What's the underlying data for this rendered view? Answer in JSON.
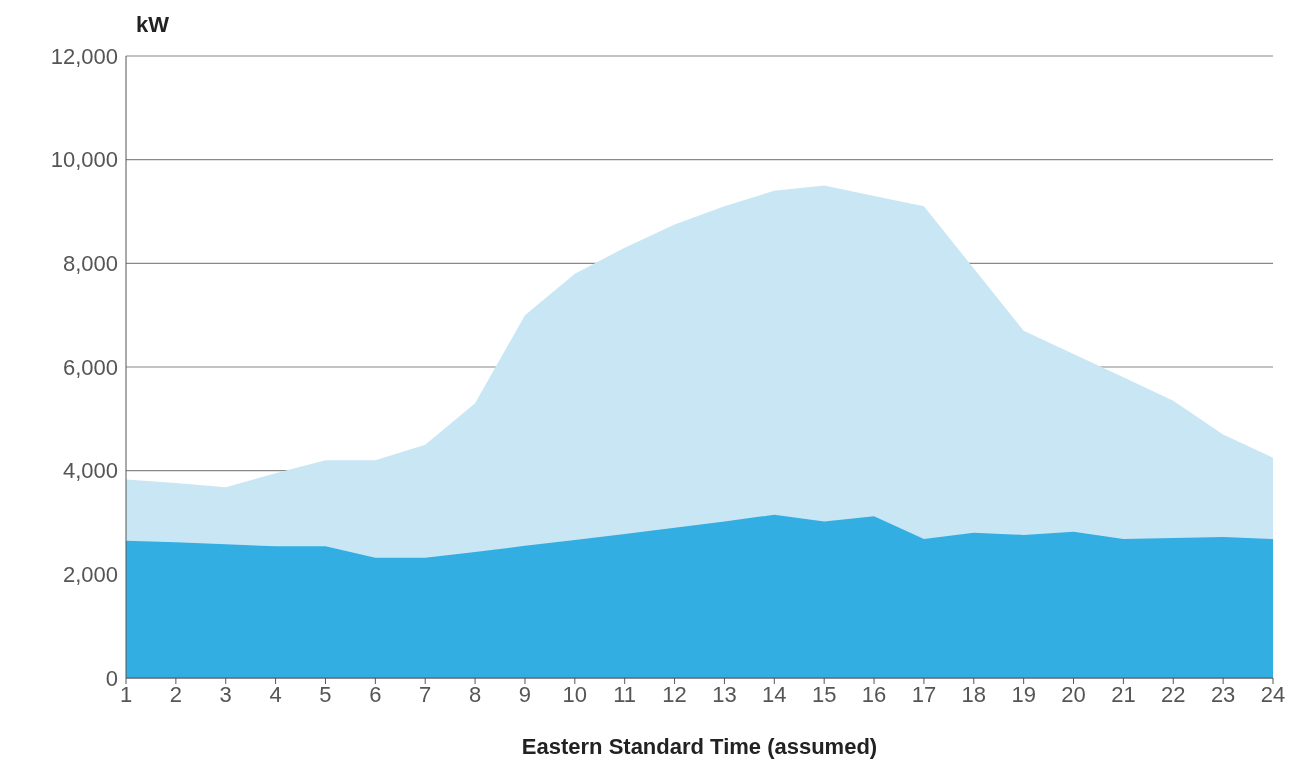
{
  "chart_data": {
    "type": "area",
    "xlabel": "Eastern Standard Time (assumed)",
    "ylabel": "kW",
    "x": [
      1,
      2,
      3,
      4,
      5,
      6,
      7,
      8,
      9,
      10,
      11,
      12,
      13,
      14,
      15,
      16,
      17,
      18,
      19,
      20,
      21,
      22,
      23,
      24
    ],
    "series": [
      {
        "color": "#c9e6f5",
        "values": [
          3830,
          3760,
          3680,
          3950,
          4200,
          4200,
          4500,
          5300,
          7000,
          7800,
          8300,
          8750,
          9100,
          9400,
          9500,
          9300,
          9100,
          7900,
          6700,
          6250,
          5800,
          5350,
          4700,
          4250
        ]
      },
      {
        "color": "#33aee3",
        "values": [
          2650,
          2620,
          2580,
          2540,
          2540,
          2320,
          2320,
          2430,
          2550,
          2660,
          2780,
          2900,
          3020,
          3150,
          3020,
          3120,
          2680,
          2800,
          2760,
          2820,
          2680,
          2700,
          2720,
          2680
        ]
      }
    ],
    "xlim": [
      1,
      24
    ],
    "xticks": [
      1,
      2,
      3,
      4,
      5,
      6,
      7,
      8,
      9,
      10,
      11,
      12,
      13,
      14,
      15,
      16,
      17,
      18,
      19,
      20,
      21,
      22,
      23,
      24
    ],
    "ylim": [
      0,
      12000
    ],
    "yticks": [
      0,
      {
        "value": 2000,
        "label": "2,000"
      },
      {
        "value": 4000,
        "label": "4,000"
      },
      {
        "value": 6000,
        "label": "6,000"
      },
      {
        "value": 8000,
        "label": "8,000"
      },
      {
        "value": 10000,
        "label": "10,000"
      },
      {
        "value": 12000,
        "label": "12,000"
      }
    ],
    "grid": "y",
    "legend": false
  }
}
